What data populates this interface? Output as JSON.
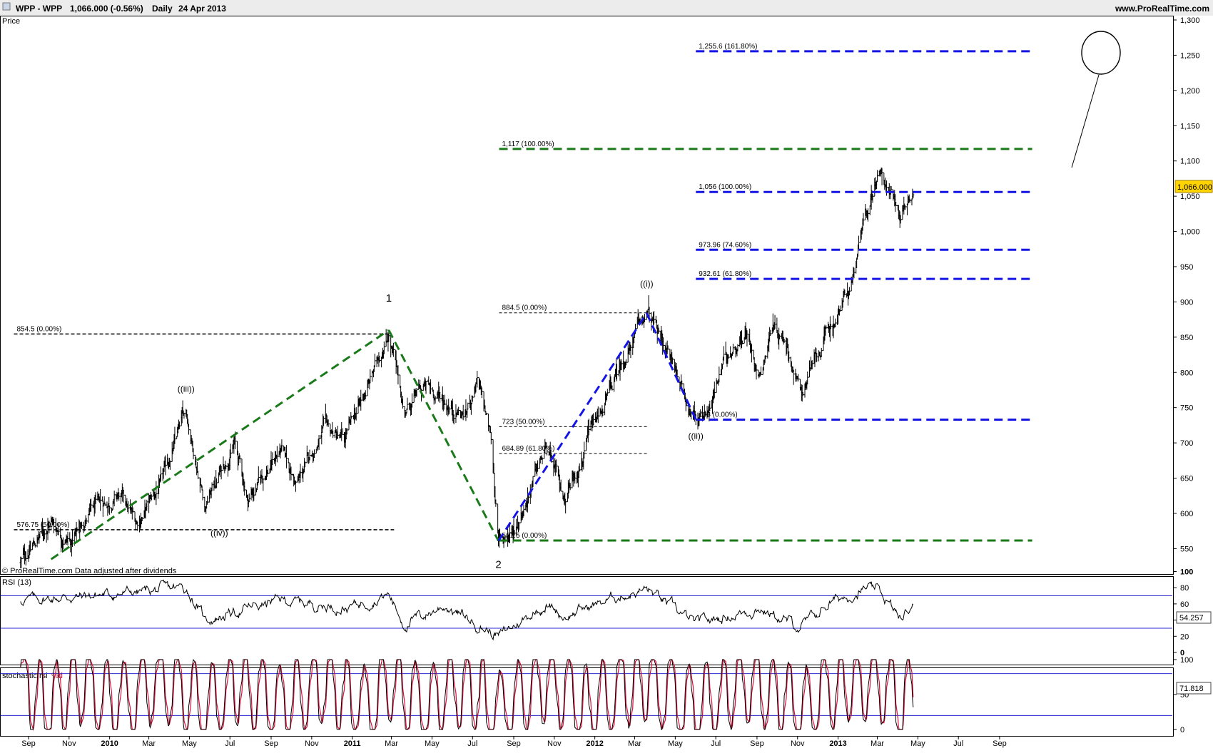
{
  "header": {
    "ticker": "WPP - WPP",
    "quote": "1,066.000 (-0.56%)",
    "period": "Daily",
    "date": "24 Apr 2013",
    "site": "www.ProRealTime.com"
  },
  "price_panel": {
    "label": "Price",
    "watermark": "© ProRealTime.com Data adjusted after dividends",
    "last_price_label": "1,066.000",
    "last_price": 1066,
    "y_ticks": [
      "1,300",
      "1,250",
      "1,200",
      "1,150",
      "1,100",
      "1,050",
      "1,000",
      "950",
      "900",
      "850",
      "800",
      "750",
      "700",
      "650",
      "600",
      "550"
    ],
    "wave_labels": [
      "((iii))",
      "((iv))",
      "1",
      "2",
      "((i))",
      "((ii))"
    ],
    "fib_labels": [
      "854.5 (0.00%)",
      "576.75 (50.00%)",
      "884.5 (0.00%)",
      "723 (50.00%)",
      "684.89 (61.80%)",
      "561.5 (0.00%)",
      "1,117 (100.00%)",
      "1,255.6 (161.80%)",
      "1,056 (100.00%)",
      "973.96 (74.60%)",
      "932.61 (61.80%)",
      "733 (0.00%)"
    ]
  },
  "rsi_panel": {
    "label": "RSI (13)",
    "last_value": "54.257",
    "y_ticks": [
      "100",
      "80",
      "60",
      "40",
      "20",
      "0"
    ]
  },
  "stoch_panel": {
    "label": "stochastic rsi",
    "label_d": "%d",
    "last_value": "71.818",
    "y_ticks": [
      "100",
      "50",
      "0"
    ]
  },
  "x_axis": {
    "labels": [
      "Sep",
      "Nov",
      "2010",
      "Mar",
      "May",
      "Jul",
      "Sep",
      "Nov",
      "2011",
      "Mar",
      "May",
      "Jul",
      "Sep",
      "Nov",
      "2012",
      "Mar",
      "May",
      "Jul",
      "Sep",
      "Nov",
      "2013",
      "Mar",
      "May",
      "Jul",
      "Sep"
    ]
  },
  "colors": {
    "green_dash": "#1a7a1a",
    "blue_dash": "#1414e6",
    "band_line": "#2b2bd0",
    "stoch_d": "#e0103c",
    "last_price_bg": "#ffd400"
  },
  "chart_data": {
    "type": "ohlc",
    "title": "WPP - WPP Daily",
    "ylim": [
      530,
      1310
    ],
    "price_path": [
      [
        "2009-08-20",
        530
      ],
      [
        "2009-10-05",
        590
      ],
      [
        "2009-11-05",
        560
      ],
      [
        "2009-12-01",
        600
      ],
      [
        "2010-01-15",
        625
      ],
      [
        "2010-02-10",
        585
      ],
      [
        "2010-03-20",
        640
      ],
      [
        "2010-04-26",
        745
      ],
      [
        "2010-05-25",
        615
      ],
      [
        "2010-07-08",
        700
      ],
      [
        "2010-07-28",
        620
      ],
      [
        "2010-09-15",
        690
      ],
      [
        "2010-10-10",
        640
      ],
      [
        "2010-11-20",
        720
      ],
      [
        "2010-12-20",
        700
      ],
      [
        "2011-01-25",
        780
      ],
      [
        "2011-02-25",
        860
      ],
      [
        "2011-03-20",
        745
      ],
      [
        "2011-04-20",
        780
      ],
      [
        "2011-05-20",
        760
      ],
      [
        "2011-06-20",
        740
      ],
      [
        "2011-07-08",
        790
      ],
      [
        "2011-07-30",
        700
      ],
      [
        "2011-08-09",
        561
      ],
      [
        "2011-09-01",
        575
      ],
      [
        "2011-10-01",
        650
      ],
      [
        "2011-10-20",
        690
      ],
      [
        "2011-11-15",
        620
      ],
      [
        "2011-12-15",
        690
      ],
      [
        "2012-01-15",
        750
      ],
      [
        "2012-02-15",
        820
      ],
      [
        "2012-03-19",
        884
      ],
      [
        "2012-04-20",
        830
      ],
      [
        "2012-06-01",
        733
      ],
      [
        "2012-06-25",
        760
      ],
      [
        "2012-07-20",
        830
      ],
      [
        "2012-08-15",
        860
      ],
      [
        "2012-09-05",
        800
      ],
      [
        "2012-09-25",
        870
      ],
      [
        "2012-10-15",
        850
      ],
      [
        "2012-11-05",
        770
      ],
      [
        "2012-11-25",
        810
      ],
      [
        "2012-12-20",
        860
      ],
      [
        "2013-01-20",
        920
      ],
      [
        "2013-02-10",
        1010
      ],
      [
        "2013-03-05",
        1095
      ],
      [
        "2013-03-20",
        1060
      ],
      [
        "2013-04-05",
        1025
      ],
      [
        "2013-04-24",
        1066
      ]
    ],
    "elliott_waves": [
      {
        "label": "1",
        "date": "2011-02-25",
        "price": 860
      },
      {
        "label": "2",
        "date": "2011-08-09",
        "price": 561
      },
      {
        "label": "((i))",
        "date": "2012-03-19",
        "price": 884
      },
      {
        "label": "((ii))",
        "date": "2012-06-01",
        "price": 733
      },
      {
        "label": "((iii))",
        "date": "2010-04-26",
        "price": 745
      },
      {
        "label": "((iv))",
        "date": "2010-06-15",
        "price": 578
      }
    ],
    "fib_levels": [
      {
        "label": "854.5 (0.00%)",
        "price": 854.5,
        "style": "black-dash"
      },
      {
        "label": "576.75 (50.00%)",
        "price": 576.75,
        "style": "black-dash"
      },
      {
        "label": "884.5 (0.00%)",
        "price": 884.5,
        "style": "thin-dash"
      },
      {
        "label": "723 (50.00%)",
        "price": 723,
        "style": "thin-dash"
      },
      {
        "label": "684.89 (61.80%)",
        "price": 684.89,
        "style": "thin-dash"
      },
      {
        "label": "561.5 (0.00%)",
        "price": 561.5,
        "style": "green"
      },
      {
        "label": "1,117 (100.00%)",
        "price": 1117,
        "style": "green"
      },
      {
        "label": "1,255.6 (161.80%)",
        "price": 1255.6,
        "style": "blue"
      },
      {
        "label": "1,056 (100.00%)",
        "price": 1056,
        "style": "blue"
      },
      {
        "label": "973.96 (74.60%)",
        "price": 973.96,
        "style": "blue"
      },
      {
        "label": "932.61 (61.80%)",
        "price": 932.61,
        "style": "blue"
      },
      {
        "label": "733 (0.00%)",
        "price": 733,
        "style": "blue"
      }
    ],
    "rsi": {
      "name": "RSI (13)",
      "bands": [
        70,
        30
      ],
      "last": 54.257,
      "path": [
        [
          "2009-08-20",
          65
        ],
        [
          "2009-12-01",
          70
        ],
        [
          "2010-04-26",
          80
        ],
        [
          "2010-05-25",
          40
        ],
        [
          "2010-09-15",
          65
        ],
        [
          "2010-12-20",
          55
        ],
        [
          "2011-02-25",
          72
        ],
        [
          "2011-03-20",
          35
        ],
        [
          "2011-05-20",
          58
        ],
        [
          "2011-08-09",
          20
        ],
        [
          "2011-10-20",
          60
        ],
        [
          "2011-11-15",
          45
        ],
        [
          "2012-02-15",
          72
        ],
        [
          "2012-03-19",
          78
        ],
        [
          "2012-06-01",
          35
        ],
        [
          "2012-09-05",
          55
        ],
        [
          "2012-11-05",
          30
        ],
        [
          "2012-12-20",
          62
        ],
        [
          "2013-02-10",
          78
        ],
        [
          "2013-03-05",
          74
        ],
        [
          "2013-04-05",
          40
        ],
        [
          "2013-04-24",
          54.257
        ]
      ]
    },
    "stochastic_rsi": {
      "name": "stochastic rsi",
      "bands": [
        80,
        20
      ],
      "last": 71.818,
      "path": [
        [
          "2009-08-20",
          80
        ],
        [
          "2009-10-05",
          10
        ],
        [
          "2009-11-05",
          90
        ],
        [
          "2010-01-15",
          20
        ],
        [
          "2010-03-20",
          95
        ],
        [
          "2010-05-25",
          5
        ],
        [
          "2010-07-08",
          85
        ],
        [
          "2010-09-15",
          15
        ],
        [
          "2010-11-20",
          90
        ],
        [
          "2011-01-25",
          10
        ],
        [
          "2011-02-25",
          95
        ],
        [
          "2011-04-20",
          5
        ],
        [
          "2011-06-20",
          85
        ],
        [
          "2011-08-09",
          0
        ],
        [
          "2011-10-20",
          90
        ],
        [
          "2011-12-15",
          15
        ],
        [
          "2012-03-19",
          95
        ],
        [
          "2012-06-01",
          5
        ],
        [
          "2012-08-15",
          90
        ],
        [
          "2012-11-05",
          5
        ],
        [
          "2013-01-20",
          95
        ],
        [
          "2013-03-05",
          90
        ],
        [
          "2013-04-05",
          10
        ],
        [
          "2013-04-24",
          71.818
        ]
      ]
    }
  }
}
